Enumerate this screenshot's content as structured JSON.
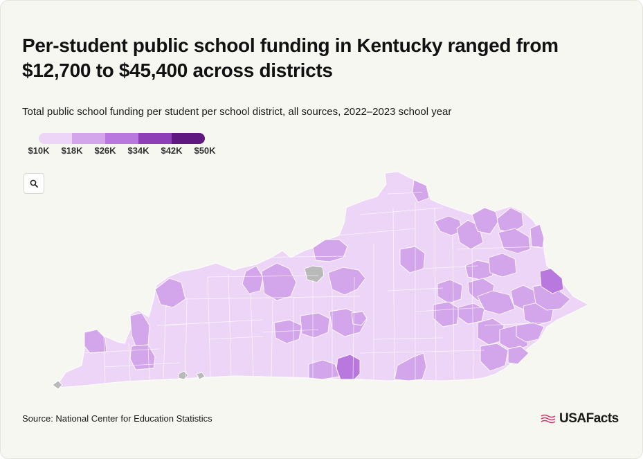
{
  "title": "Per-student public school funding in Kentucky ranged from $12,700 to $45,400 across districts",
  "subtitle": "Total public school funding per student per school district, all sources, 2022–2023 school year",
  "legend": {
    "ticks": [
      "$10K",
      "$18K",
      "$26K",
      "$34K",
      "$42K",
      "$50K"
    ],
    "colors": [
      "#ecd5f6",
      "#d3a5ea",
      "#b878de",
      "#8e3fb8",
      "#5f1880"
    ]
  },
  "colors": {
    "no_data": "#b9b9b9",
    "border": "#ffffff",
    "background": "#f7f7f2"
  },
  "zoom_icon": "search-icon",
  "source": "Source: National Center for Education Statistics",
  "brand": {
    "name": "USAFacts",
    "flag_color": "#d6336c"
  }
}
